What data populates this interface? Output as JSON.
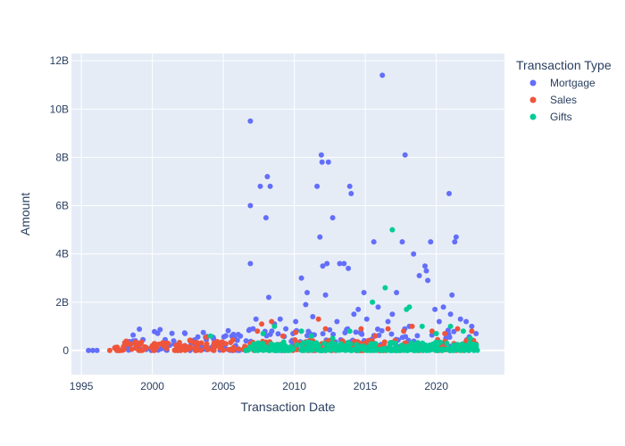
{
  "chart_data": {
    "type": "scatter",
    "xlabel": "Transaction Date",
    "ylabel": "Amount",
    "xlim": [
      1994.3,
      2024.8
    ],
    "ylim": [
      -1.0,
      12.3
    ],
    "y_unit": "billions",
    "grid": true,
    "legend_position": "top-right",
    "legend_title": "Transaction Type",
    "x_ticks": [
      1995,
      2000,
      2005,
      2010,
      2015,
      2020
    ],
    "x_tick_labels": [
      "1995",
      "2000",
      "2005",
      "2010",
      "2015",
      "2020"
    ],
    "y_ticks": [
      0,
      2,
      4,
      6,
      8,
      10,
      12
    ],
    "y_tick_labels": [
      "0",
      "2B",
      "4B",
      "6B",
      "8B",
      "10B",
      "12B"
    ],
    "series": [
      {
        "name": "Mortgage",
        "color": "#636efa",
        "points": [
          [
            1995.5,
            0
          ],
          [
            1995.8,
            0
          ],
          [
            1996.1,
            0
          ],
          [
            1998.5,
            0.05
          ],
          [
            1999.1,
            0.3
          ],
          [
            1999.6,
            0.1
          ],
          [
            2000.2,
            0.2
          ],
          [
            2000.9,
            0.45
          ],
          [
            2001.5,
            0.4
          ],
          [
            2002.3,
            0.2
          ],
          [
            2003.1,
            0.15
          ],
          [
            2003.8,
            0.45
          ],
          [
            2004.3,
            0.2
          ],
          [
            2005.0,
            0.3
          ],
          [
            2005.8,
            0.5
          ],
          [
            2006.2,
            0.6
          ],
          [
            2006.6,
            0.4
          ],
          [
            2006.9,
            9.5
          ],
          [
            2006.9,
            6.0
          ],
          [
            2006.9,
            3.6
          ],
          [
            2007.1,
            0.9
          ],
          [
            2007.3,
            1.3
          ],
          [
            2007.6,
            6.8
          ],
          [
            2008.0,
            5.5
          ],
          [
            2008.1,
            7.2
          ],
          [
            2008.2,
            2.2
          ],
          [
            2008.3,
            6.8
          ],
          [
            2008.6,
            1.1
          ],
          [
            2009.0,
            1.3
          ],
          [
            2009.4,
            0.9
          ],
          [
            2009.9,
            0.7
          ],
          [
            2010.1,
            1.2
          ],
          [
            2010.5,
            3.0
          ],
          [
            2010.8,
            1.9
          ],
          [
            2010.9,
            2.4
          ],
          [
            2011.3,
            1.4
          ],
          [
            2011.6,
            6.8
          ],
          [
            2011.8,
            4.7
          ],
          [
            2011.9,
            8.1
          ],
          [
            2011.95,
            7.8
          ],
          [
            2012.0,
            3.5
          ],
          [
            2012.2,
            2.3
          ],
          [
            2012.3,
            3.6
          ],
          [
            2012.4,
            7.8
          ],
          [
            2012.7,
            5.5
          ],
          [
            2013.0,
            1.2
          ],
          [
            2013.2,
            3.6
          ],
          [
            2013.5,
            3.6
          ],
          [
            2013.8,
            3.4
          ],
          [
            2013.9,
            6.8
          ],
          [
            2014.0,
            6.5
          ],
          [
            2014.2,
            1.5
          ],
          [
            2014.5,
            1.7
          ],
          [
            2014.9,
            2.4
          ],
          [
            2015.1,
            1.3
          ],
          [
            2015.6,
            4.5
          ],
          [
            2015.9,
            1.8
          ],
          [
            2016.2,
            11.4
          ],
          [
            2016.6,
            1.2
          ],
          [
            2016.9,
            1.5
          ],
          [
            2017.2,
            2.4
          ],
          [
            2017.6,
            4.5
          ],
          [
            2017.8,
            8.1
          ],
          [
            2018.1,
            1.0
          ],
          [
            2018.4,
            4.0
          ],
          [
            2018.8,
            3.1
          ],
          [
            2019.2,
            3.5
          ],
          [
            2019.3,
            3.3
          ],
          [
            2019.4,
            2.9
          ],
          [
            2019.6,
            4.5
          ],
          [
            2019.9,
            1.7
          ],
          [
            2020.2,
            1.2
          ],
          [
            2020.5,
            1.8
          ],
          [
            2020.9,
            6.5
          ],
          [
            2021.0,
            1.5
          ],
          [
            2021.1,
            2.3
          ],
          [
            2021.3,
            4.5
          ],
          [
            2021.4,
            4.7
          ],
          [
            2021.7,
            1.3
          ],
          [
            2022.1,
            1.2
          ],
          [
            2022.5,
            1.0
          ],
          [
            2022.8,
            0.7
          ]
        ]
      },
      {
        "name": "Sales",
        "color": "#ef553b",
        "points": [
          [
            1997.0,
            0
          ],
          [
            1997.5,
            0
          ],
          [
            1998.0,
            0.05
          ],
          [
            1998.8,
            0.1
          ],
          [
            2003.8,
            0.55
          ],
          [
            2007.4,
            0.8
          ],
          [
            2007.7,
            1.1
          ],
          [
            2008.4,
            1.2
          ],
          [
            2009.2,
            0.6
          ],
          [
            2010.1,
            0.75
          ],
          [
            2011.3,
            0.4
          ],
          [
            2011.7,
            1.3
          ],
          [
            2012.2,
            0.9
          ],
          [
            2013.4,
            0.4
          ],
          [
            2014.7,
            0.9
          ],
          [
            2015.7,
            0.6
          ],
          [
            2016.6,
            0.9
          ],
          [
            2017.7,
            0.8
          ],
          [
            2018.3,
            1.0
          ],
          [
            2019.7,
            0.8
          ],
          [
            2020.6,
            0.7
          ],
          [
            2021.5,
            0.9
          ],
          [
            2022.5,
            0.8
          ]
        ]
      },
      {
        "name": "Gifts",
        "color": "#00cc96",
        "points": [
          [
            2004.1,
            0.6
          ],
          [
            2007.8,
            0.7
          ],
          [
            2008.6,
            1.0
          ],
          [
            2010.5,
            0.8
          ],
          [
            2011.2,
            0.6
          ],
          [
            2012.7,
            0.5
          ],
          [
            2013.9,
            0.8
          ],
          [
            2015.5,
            2.0
          ],
          [
            2016.4,
            2.6
          ],
          [
            2016.9,
            5.0
          ],
          [
            2017.9,
            1.7
          ],
          [
            2018.1,
            1.8
          ],
          [
            2019.0,
            1.0
          ],
          [
            2020.0,
            0.7
          ],
          [
            2021.0,
            1.0
          ],
          [
            2021.9,
            0.8
          ],
          [
            2022.4,
            0.5
          ],
          [
            2022.7,
            0.2
          ]
        ]
      }
    ],
    "bands": [
      {
        "series": "Mortgage",
        "x_range": [
          1998.0,
          2022.9
        ],
        "y_range": [
          0.0,
          0.9
        ],
        "samples": 220
      },
      {
        "series": "Sales",
        "x_range": [
          1997.3,
          2022.9
        ],
        "y_range": [
          0.0,
          0.45
        ],
        "samples": 320
      },
      {
        "series": "Gifts",
        "x_range": [
          2006.5,
          2022.9
        ],
        "y_range": [
          0.0,
          0.35
        ],
        "samples": 320
      }
    ]
  }
}
